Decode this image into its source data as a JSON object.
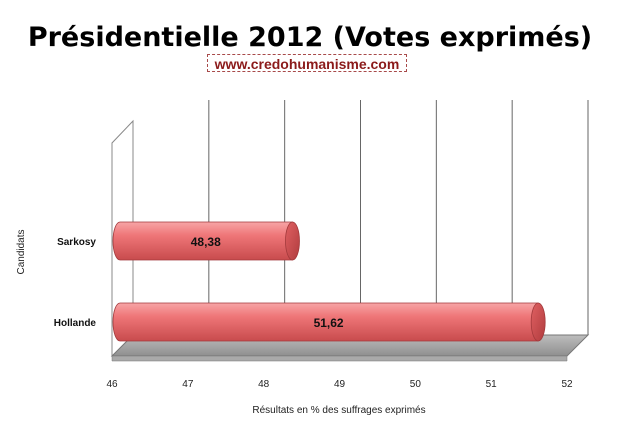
{
  "title": "Présidentielle 2012 (Votes exprimés)",
  "subtitle": "www.credohumanisme.com",
  "chart_data": {
    "type": "bar",
    "orientation": "horizontal",
    "title": "Présidentielle 2012 (Votes exprimés)",
    "categories": [
      "Sarkosy",
      "Hollande"
    ],
    "values": [
      48.38,
      51.62
    ],
    "value_labels": [
      "48,38",
      "51,62"
    ],
    "xlabel": "Résultats en % des suffrages exprimés",
    "ylabel": "Candidats",
    "xlim": [
      46,
      52
    ],
    "x_ticks": [
      "46",
      "47",
      "48",
      "49",
      "50",
      "51",
      "52"
    ],
    "grid": true,
    "legend": "none",
    "bar_color": "#e8686a",
    "bar_end_color": "#c94a4c"
  }
}
